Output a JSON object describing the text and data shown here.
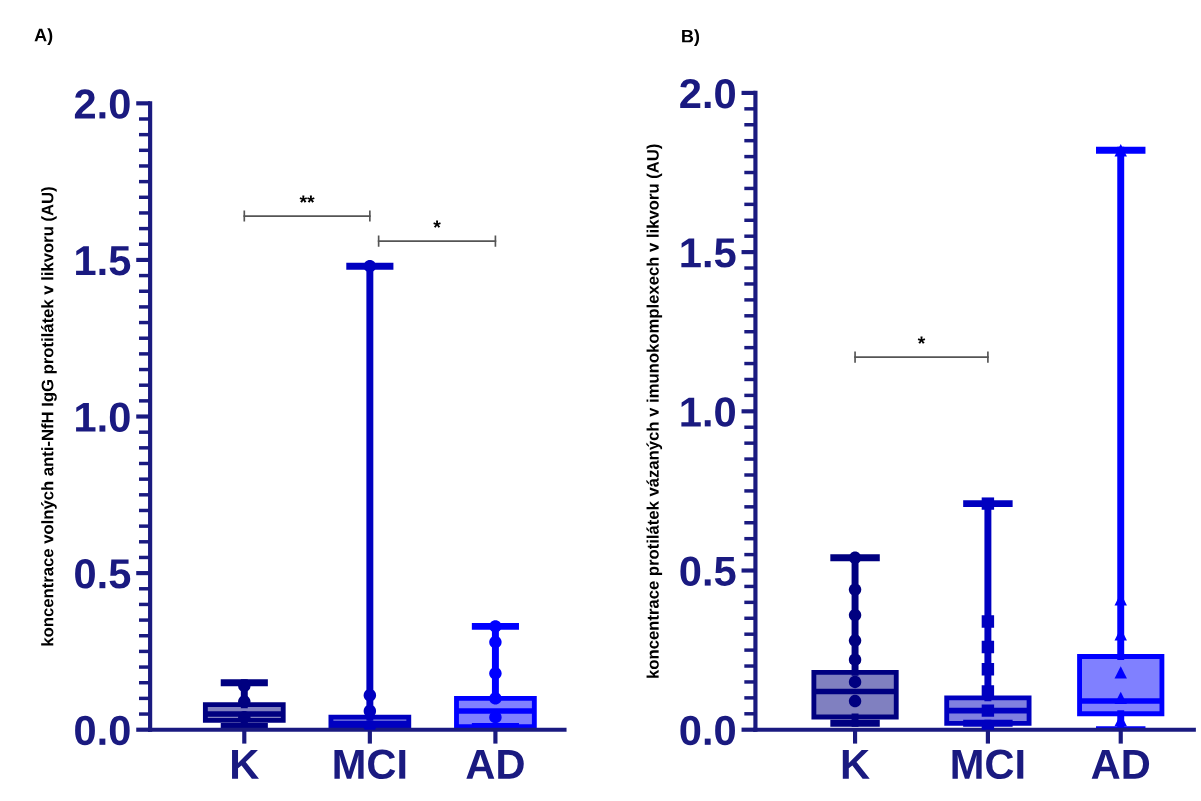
{
  "chart_data": [
    {
      "type": "box",
      "title": "A)",
      "ylabel": "koncentrace volných anti-NfH IgG protilátek v likvoru (AU)",
      "categories": [
        "K",
        "MCI",
        "AD"
      ],
      "ylim": [
        0,
        2.0
      ],
      "yticks": [
        {
          "value": 0,
          "label": "0.0"
        },
        {
          "value": 0.5,
          "label": "0.5"
        },
        {
          "value": 1.0,
          "label": "1.0"
        },
        {
          "value": 1.5,
          "label": "1.5"
        },
        {
          "value": 2.0,
          "label": "2.0"
        }
      ],
      "grid": false,
      "annotations": [
        "**",
        "*"
      ],
      "series": [
        {
          "type": "box",
          "colors": [
            "#000080",
            "#0000c0",
            "#0000ff"
          ],
          "boxes": [
            {
              "low": 0.01,
              "q1": 0.03,
              "median": 0.05,
              "q3": 0.08,
              "high": 0.15
            },
            {
              "low": 0.0,
              "q1": 0.005,
              "median": 0.02,
              "q3": 0.04,
              "high": 1.48
            },
            {
              "low": 0.01,
              "q1": 0.01,
              "median": 0.06,
              "q3": 0.1,
              "high": 0.33
            }
          ]
        },
        {
          "type": "scatter",
          "marker": "circle",
          "color": "#000080",
          "x": [
            "K",
            "K",
            "K"
          ],
          "values": [
            0.14,
            0.09,
            0.04
          ]
        },
        {
          "type": "scatter",
          "marker": "circle",
          "color": "#0000c0",
          "x": [
            "MCI",
            "MCI",
            "MCI",
            "MCI"
          ],
          "values": [
            1.48,
            0.11,
            0.06,
            0.01
          ]
        },
        {
          "type": "scatter",
          "marker": "circle",
          "color": "#0000ff",
          "x": [
            "AD",
            "AD",
            "AD",
            "AD",
            "AD"
          ],
          "values": [
            0.33,
            0.28,
            0.18,
            0.1,
            0.04
          ]
        }
      ]
    },
    {
      "type": "box",
      "title": "B)",
      "ylabel": "koncentrace protilátek vázaných v imunokomplexech v likvoru (AU)",
      "categories": [
        "K",
        "MCI",
        "AD"
      ],
      "ylim": [
        0,
        2.0
      ],
      "yticks": [
        {
          "value": 0,
          "label": "0.0"
        },
        {
          "value": 0.5,
          "label": "0.5"
        },
        {
          "value": 1.0,
          "label": "1.0"
        },
        {
          "value": 1.5,
          "label": "1.5"
        },
        {
          "value": 2.0,
          "label": "2.0"
        }
      ],
      "grid": false,
      "annotations": [
        "*"
      ],
      "series": [
        {
          "type": "box",
          "colors": [
            "#000080",
            "#0000c0",
            "#0000ff"
          ],
          "boxes": [
            {
              "low": 0.02,
              "q1": 0.04,
              "median": 0.12,
              "q3": 0.18,
              "high": 0.54
            },
            {
              "low": 0.02,
              "q1": 0.02,
              "median": 0.06,
              "q3": 0.1,
              "high": 0.71
            },
            {
              "low": 0.0,
              "q1": 0.05,
              "median": 0.09,
              "q3": 0.23,
              "high": 1.82
            }
          ]
        },
        {
          "type": "scatter",
          "marker": "circle",
          "color": "#000080",
          "x": [
            "K",
            "K",
            "K",
            "K",
            "K",
            "K",
            "K"
          ],
          "values": [
            0.54,
            0.44,
            0.36,
            0.28,
            0.22,
            0.15,
            0.09
          ]
        },
        {
          "type": "scatter",
          "marker": "square",
          "color": "#0000c0",
          "x": [
            "MCI",
            "MCI",
            "MCI",
            "MCI",
            "MCI",
            "MCI",
            "MCI"
          ],
          "values": [
            0.71,
            0.34,
            0.26,
            0.19,
            0.12,
            0.06,
            0.01
          ]
        },
        {
          "type": "scatter",
          "marker": "triangle",
          "color": "#0000ff",
          "x": [
            "AD",
            "AD",
            "AD",
            "AD",
            "AD",
            "AD"
          ],
          "values": [
            1.82,
            0.41,
            0.3,
            0.18,
            0.1,
            0.03
          ]
        }
      ]
    }
  ]
}
